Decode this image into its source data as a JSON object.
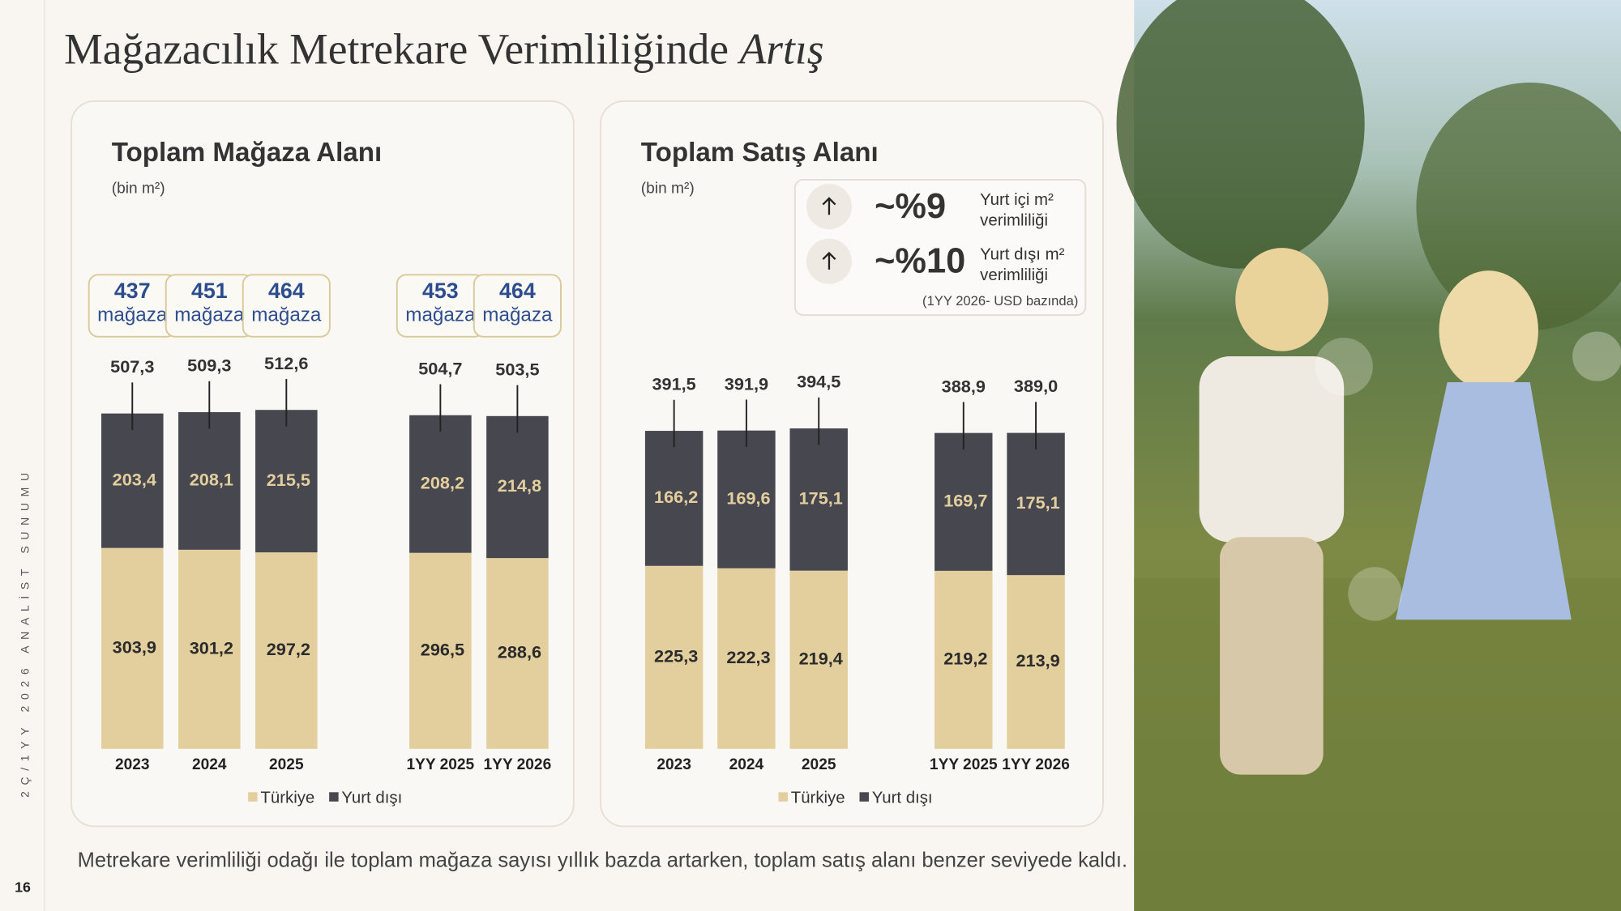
{
  "slide": {
    "title": "Mağazacılık Metrekare Verimliliğinde",
    "title_emphasis": "Artış",
    "footer": "Metrekare verimliliği odağı ile toplam mağaza sayısı yıllık bazda artarken, toplam satış alanı benzer seviyede kaldı.",
    "side_label": "2Ç/1YY 2026 ANALİST SUNUMU",
    "page_number": "16"
  },
  "chart_data": [
    {
      "type": "bar",
      "stacked": true,
      "title": "Toplam Mağaza Alanı",
      "unit": "(bin m²)",
      "categories": [
        "2023",
        "2024",
        "2025",
        "1YY 2025",
        "1YY 2026"
      ],
      "series": [
        {
          "name": "Türkiye",
          "color": "#e3cf9e",
          "values": [
            303.9,
            301.2,
            297.2,
            296.5,
            288.6
          ],
          "value_labels": [
            "303,9",
            "301,2",
            "297,2",
            "296,5",
            "288,6"
          ]
        },
        {
          "name": "Yurt dışı",
          "color": "#47474f",
          "values": [
            203.4,
            208.1,
            215.5,
            208.2,
            214.8
          ],
          "value_labels": [
            "203,4",
            "208,1",
            "215,5",
            "208,2",
            "214,8"
          ]
        }
      ],
      "totals": [
        507.3,
        509.3,
        512.6,
        504.7,
        503.5
      ],
      "total_labels": [
        "507,3",
        "509,3",
        "512,6",
        "504,7",
        "503,5"
      ],
      "store_counts": [
        437,
        451,
        464,
        453,
        464
      ],
      "store_unit": "mağaza",
      "ylim": [
        0,
        550
      ]
    },
    {
      "type": "bar",
      "stacked": true,
      "title": "Toplam Satış Alanı",
      "unit": "(bin m²)",
      "categories": [
        "2023",
        "2024",
        "2025",
        "1YY 2025",
        "1YY 2026"
      ],
      "series": [
        {
          "name": "Türkiye",
          "color": "#e3cf9e",
          "values": [
            225.3,
            222.3,
            219.4,
            219.2,
            213.9
          ],
          "value_labels": [
            "225,3",
            "222,3",
            "219,4",
            "219,2",
            "213,9"
          ]
        },
        {
          "name": "Yurt dışı",
          "color": "#47474f",
          "values": [
            166.2,
            169.6,
            175.1,
            169.7,
            175.1
          ],
          "value_labels": [
            "166,2",
            "169,6",
            "175,1",
            "169,7",
            "175,1"
          ]
        }
      ],
      "totals": [
        391.5,
        391.9,
        394.5,
        388.9,
        389.0
      ],
      "total_labels": [
        "391,5",
        "391,9",
        "394,5",
        "388,9",
        "389,0"
      ],
      "ylim": [
        0,
        440
      ],
      "callout": {
        "rows": [
          {
            "value": "~%9",
            "label_lines": [
              "Yurt içi m²",
              "verimliliği"
            ]
          },
          {
            "value": "~%10",
            "label_lines": [
              "Yurt dışı m²",
              "verimliliği"
            ]
          }
        ],
        "note": "(1YY 2026-  USD bazında)"
      }
    }
  ]
}
